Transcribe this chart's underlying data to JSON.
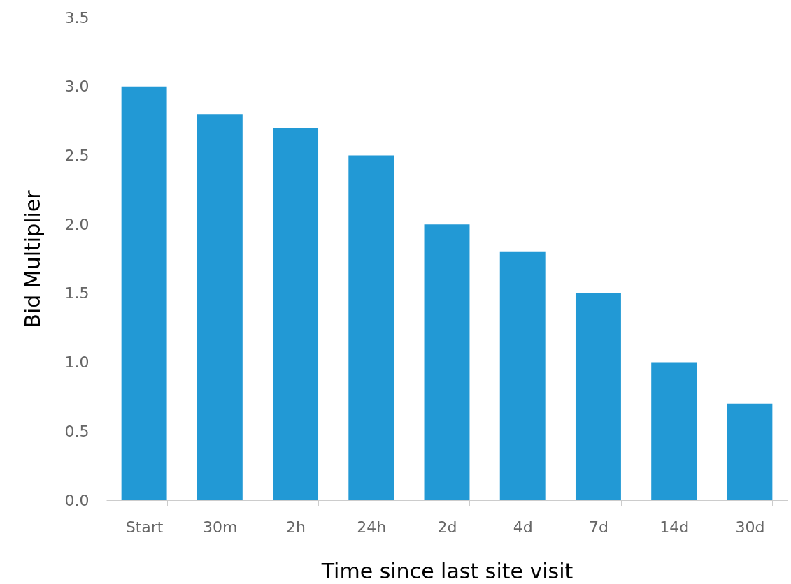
{
  "chart_data": {
    "type": "bar",
    "xlabel": "Time since last site visit",
    "ylabel": "Bid Multiplier",
    "categories": [
      "Start",
      "30m",
      "2h",
      "24h",
      "2d",
      "4d",
      "7d",
      "14d",
      "30d"
    ],
    "values": [
      3.0,
      2.8,
      2.7,
      2.5,
      2.0,
      1.8,
      1.5,
      1.0,
      0.7
    ],
    "color": "#2299d5",
    "ylim": [
      0,
      3.5
    ],
    "yticks": [
      {
        "value": 0,
        "label": "0.0"
      },
      {
        "value": 0.5,
        "label": "0.5"
      },
      {
        "value": 1,
        "label": "1.0"
      },
      {
        "value": 1.5,
        "label": "1.5"
      },
      {
        "value": 2,
        "label": "2.0"
      },
      {
        "value": 2.5,
        "label": "2.5"
      },
      {
        "value": 3,
        "label": "3.0"
      },
      {
        "value": 3.5,
        "label": "3.5"
      }
    ]
  }
}
